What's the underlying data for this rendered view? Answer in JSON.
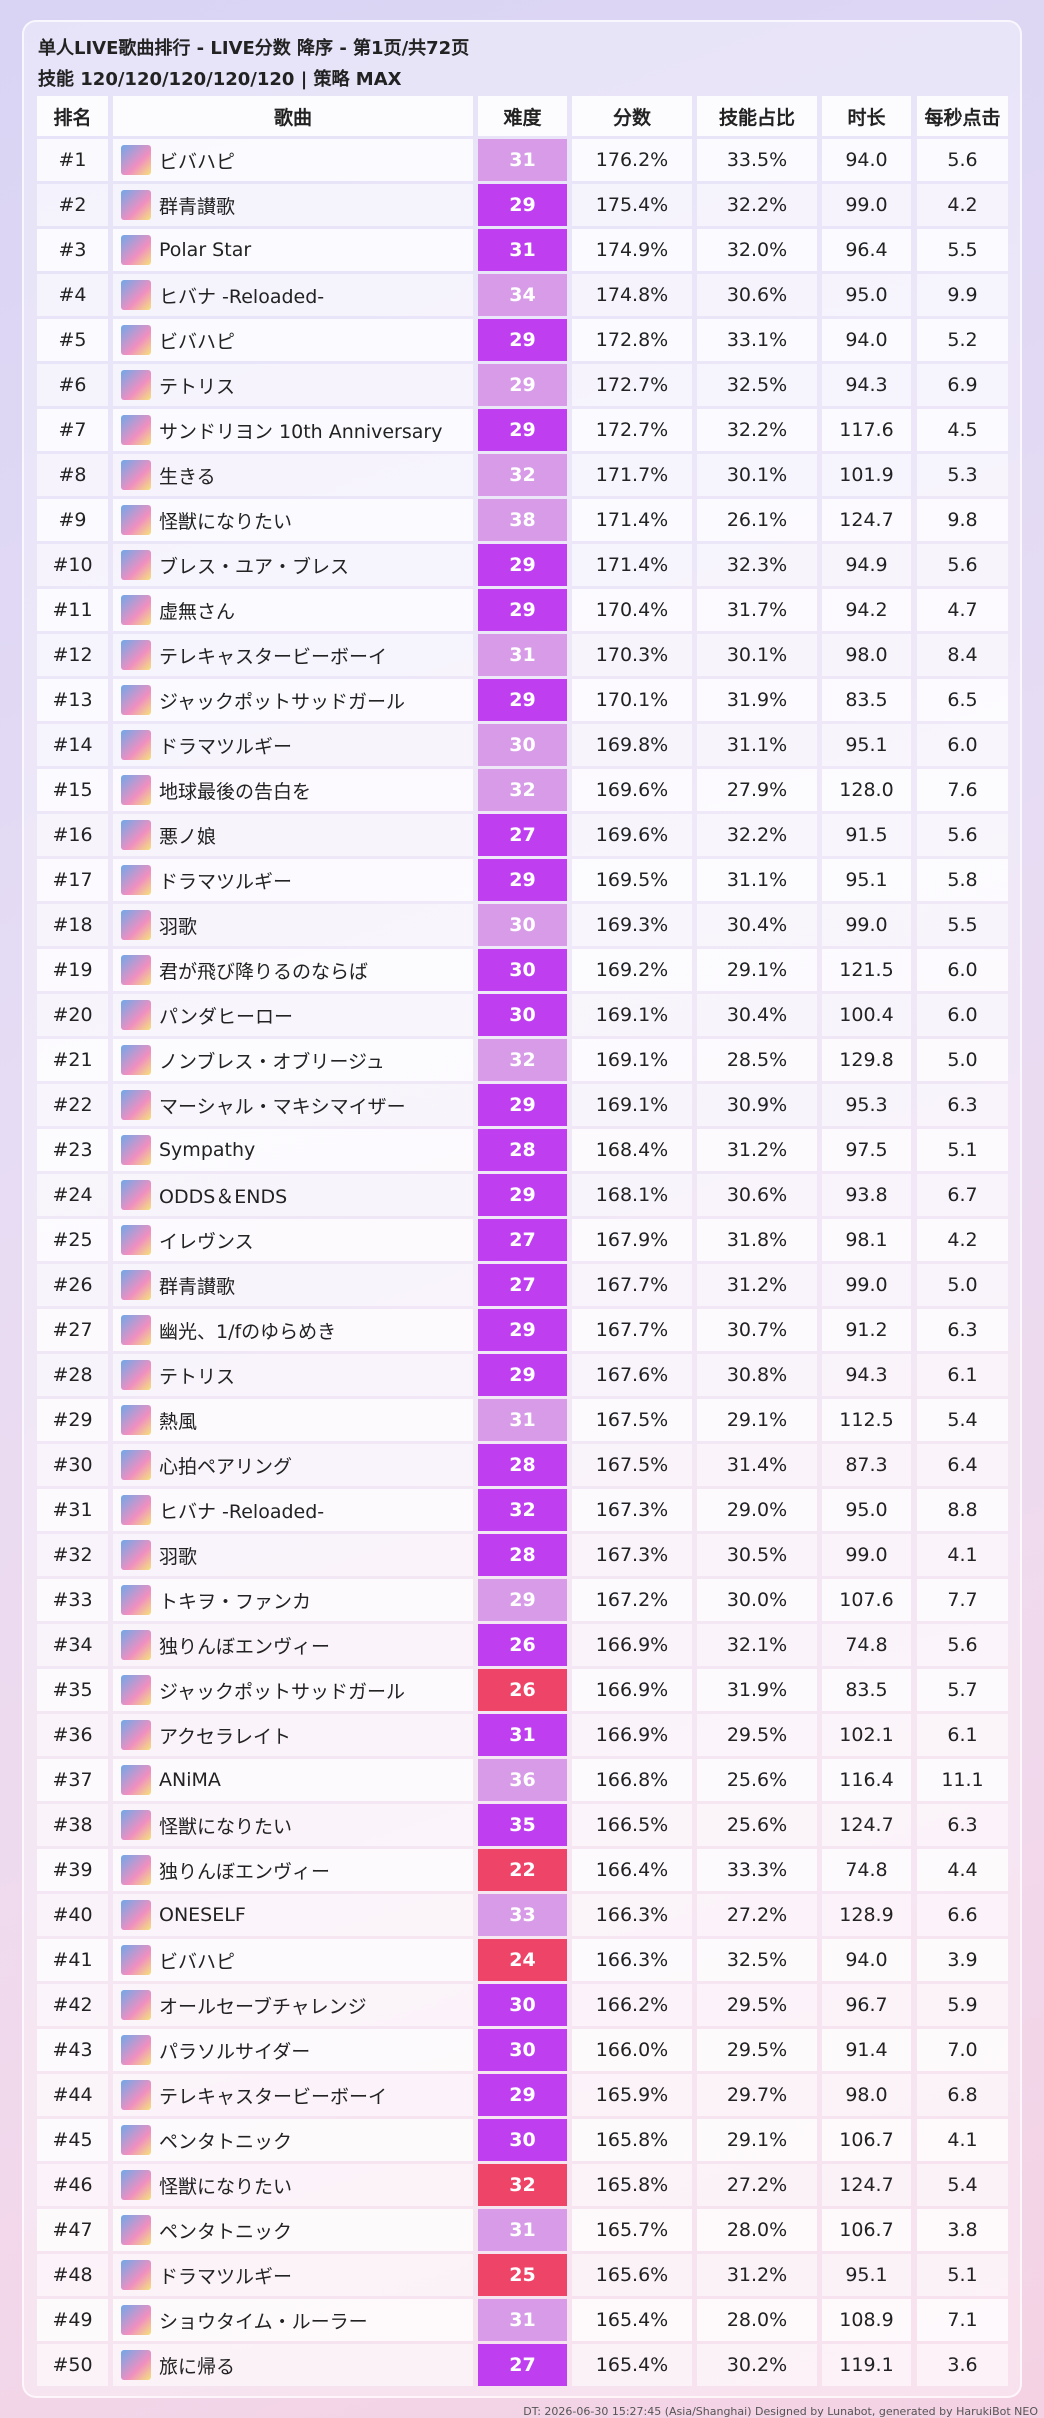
{
  "header": {
    "title": "单人LIVE歌曲排行 - LIVE分数 降序 - 第1页/共72页",
    "subtitle": "技能 120/120/120/120/120 | 策略 MAX"
  },
  "table": {
    "columns": [
      "排名",
      "歌曲",
      "难度",
      "分数",
      "技能占比",
      "时长",
      "每秒点击"
    ],
    "difficulty_colors": [
      "#d79be8",
      "#bf3ef0",
      "#bf3ef0",
      "#d79be8",
      "#bf3ef0",
      "#d79be8",
      "#bf3ef0",
      "#d79be8",
      "#d79be8",
      "#bf3ef0",
      "#bf3ef0",
      "#d79be8",
      "#bf3ef0",
      "#d79be8",
      "#d79be8",
      "#bf3ef0",
      "#bf3ef0",
      "#d79be8",
      "#bf3ef0",
      "#bf3ef0",
      "#d79be8",
      "#bf3ef0",
      "#bf3ef0",
      "#bf3ef0",
      "#bf3ef0",
      "#bf3ef0",
      "#bf3ef0",
      "#bf3ef0",
      "#d79be8",
      "#bf3ef0",
      "#bf3ef0",
      "#bf3ef0",
      "#d79be8",
      "#bf3ef0",
      "#ee4468",
      "#bf3ef0",
      "#d79be8",
      "#bf3ef0",
      "#ee4468",
      "#d79be8",
      "#ee4468",
      "#bf3ef0",
      "#bf3ef0",
      "#bf3ef0",
      "#bf3ef0",
      "#ee4468",
      "#d79be8",
      "#ee4468",
      "#d79be8",
      "#bf3ef0"
    ],
    "rows": [
      [
        "#1",
        "ビバハピ",
        "31",
        "176.2%",
        "33.5%",
        "94.0",
        "5.6"
      ],
      [
        "#2",
        "群青讃歌",
        "29",
        "175.4%",
        "32.2%",
        "99.0",
        "4.2"
      ],
      [
        "#3",
        "Polar Star",
        "31",
        "174.9%",
        "32.0%",
        "96.4",
        "5.5"
      ],
      [
        "#4",
        "ヒバナ -Reloaded-",
        "34",
        "174.8%",
        "30.6%",
        "95.0",
        "9.9"
      ],
      [
        "#5",
        "ビバハピ",
        "29",
        "172.8%",
        "33.1%",
        "94.0",
        "5.2"
      ],
      [
        "#6",
        "テトリス",
        "29",
        "172.7%",
        "32.5%",
        "94.3",
        "6.9"
      ],
      [
        "#7",
        "サンドリヨン 10th Anniversary",
        "29",
        "172.7%",
        "32.2%",
        "117.6",
        "4.5"
      ],
      [
        "#8",
        "生きる",
        "32",
        "171.7%",
        "30.1%",
        "101.9",
        "5.3"
      ],
      [
        "#9",
        "怪獣になりたい",
        "38",
        "171.4%",
        "26.1%",
        "124.7",
        "9.8"
      ],
      [
        "#10",
        "ブレス・ユア・ブレス",
        "29",
        "171.4%",
        "32.3%",
        "94.9",
        "5.6"
      ],
      [
        "#11",
        "虚無さん",
        "29",
        "170.4%",
        "31.7%",
        "94.2",
        "4.7"
      ],
      [
        "#12",
        "テレキャスタービーボーイ",
        "31",
        "170.3%",
        "30.1%",
        "98.0",
        "8.4"
      ],
      [
        "#13",
        "ジャックポットサッドガール",
        "29",
        "170.1%",
        "31.9%",
        "83.5",
        "6.5"
      ],
      [
        "#14",
        "ドラマツルギー",
        "30",
        "169.8%",
        "31.1%",
        "95.1",
        "6.0"
      ],
      [
        "#15",
        "地球最後の告白を",
        "32",
        "169.6%",
        "27.9%",
        "128.0",
        "7.6"
      ],
      [
        "#16",
        "悪ノ娘",
        "27",
        "169.6%",
        "32.2%",
        "91.5",
        "5.6"
      ],
      [
        "#17",
        "ドラマツルギー",
        "29",
        "169.5%",
        "31.1%",
        "95.1",
        "5.8"
      ],
      [
        "#18",
        "羽歌",
        "30",
        "169.3%",
        "30.4%",
        "99.0",
        "5.5"
      ],
      [
        "#19",
        "君が飛び降りるのならば",
        "30",
        "169.2%",
        "29.1%",
        "121.5",
        "6.0"
      ],
      [
        "#20",
        "パンダヒーロー",
        "30",
        "169.1%",
        "30.4%",
        "100.4",
        "6.0"
      ],
      [
        "#21",
        "ノンブレス・オブリージュ",
        "32",
        "169.1%",
        "28.5%",
        "129.8",
        "5.0"
      ],
      [
        "#22",
        "マーシャル・マキシマイザー",
        "29",
        "169.1%",
        "30.9%",
        "95.3",
        "6.3"
      ],
      [
        "#23",
        "Sympathy",
        "28",
        "168.4%",
        "31.2%",
        "97.5",
        "5.1"
      ],
      [
        "#24",
        "ODDS＆ENDS",
        "29",
        "168.1%",
        "30.6%",
        "93.8",
        "6.7"
      ],
      [
        "#25",
        "イレヴンス",
        "27",
        "167.9%",
        "31.8%",
        "98.1",
        "4.2"
      ],
      [
        "#26",
        "群青讃歌",
        "27",
        "167.7%",
        "31.2%",
        "99.0",
        "5.0"
      ],
      [
        "#27",
        "幽光、1/fのゆらめき",
        "29",
        "167.7%",
        "30.7%",
        "91.2",
        "6.3"
      ],
      [
        "#28",
        "テトリス",
        "29",
        "167.6%",
        "30.8%",
        "94.3",
        "6.1"
      ],
      [
        "#29",
        "熱風",
        "31",
        "167.5%",
        "29.1%",
        "112.5",
        "5.4"
      ],
      [
        "#30",
        "心拍ペアリング",
        "28",
        "167.5%",
        "31.4%",
        "87.3",
        "6.4"
      ],
      [
        "#31",
        "ヒバナ -Reloaded-",
        "32",
        "167.3%",
        "29.0%",
        "95.0",
        "8.8"
      ],
      [
        "#32",
        "羽歌",
        "28",
        "167.3%",
        "30.5%",
        "99.0",
        "4.1"
      ],
      [
        "#33",
        "トキヲ・ファンカ",
        "29",
        "167.2%",
        "30.0%",
        "107.6",
        "7.7"
      ],
      [
        "#34",
        "独りんぼエンヴィー",
        "26",
        "166.9%",
        "32.1%",
        "74.8",
        "5.6"
      ],
      [
        "#35",
        "ジャックポットサッドガール",
        "26",
        "166.9%",
        "31.9%",
        "83.5",
        "5.7"
      ],
      [
        "#36",
        "アクセラレイト",
        "31",
        "166.9%",
        "29.5%",
        "102.1",
        "6.1"
      ],
      [
        "#37",
        "ANiMA",
        "36",
        "166.8%",
        "25.6%",
        "116.4",
        "11.1"
      ],
      [
        "#38",
        "怪獣になりたい",
        "35",
        "166.5%",
        "25.6%",
        "124.7",
        "6.3"
      ],
      [
        "#39",
        "独りんぼエンヴィー",
        "22",
        "166.4%",
        "33.3%",
        "74.8",
        "4.4"
      ],
      [
        "#40",
        "ONESELF",
        "33",
        "166.3%",
        "27.2%",
        "128.9",
        "6.6"
      ],
      [
        "#41",
        "ビバハピ",
        "24",
        "166.3%",
        "32.5%",
        "94.0",
        "3.9"
      ],
      [
        "#42",
        "オールセーブチャレンジ",
        "30",
        "166.2%",
        "29.5%",
        "96.7",
        "5.9"
      ],
      [
        "#43",
        "パラソルサイダー",
        "30",
        "166.0%",
        "29.5%",
        "91.4",
        "7.0"
      ],
      [
        "#44",
        "テレキャスタービーボーイ",
        "29",
        "165.9%",
        "29.7%",
        "98.0",
        "6.8"
      ],
      [
        "#45",
        "ペンタトニック",
        "30",
        "165.8%",
        "29.1%",
        "106.7",
        "4.1"
      ],
      [
        "#46",
        "怪獣になりたい",
        "32",
        "165.8%",
        "27.2%",
        "124.7",
        "5.4"
      ],
      [
        "#47",
        "ペンタトニック",
        "31",
        "165.7%",
        "28.0%",
        "106.7",
        "3.8"
      ],
      [
        "#48",
        "ドラマツルギー",
        "25",
        "165.6%",
        "31.2%",
        "95.1",
        "5.1"
      ],
      [
        "#49",
        "ショウタイム・ルーラー",
        "31",
        "165.4%",
        "28.0%",
        "108.9",
        "7.1"
      ],
      [
        "#50",
        "旅に帰る",
        "27",
        "165.4%",
        "30.2%",
        "119.1",
        "3.6"
      ]
    ]
  },
  "footer": "DT: 2026-06-30 15:27:45 (Asia/Shanghai)  Designed by Lunabot, generated by HarukiBot NEO"
}
